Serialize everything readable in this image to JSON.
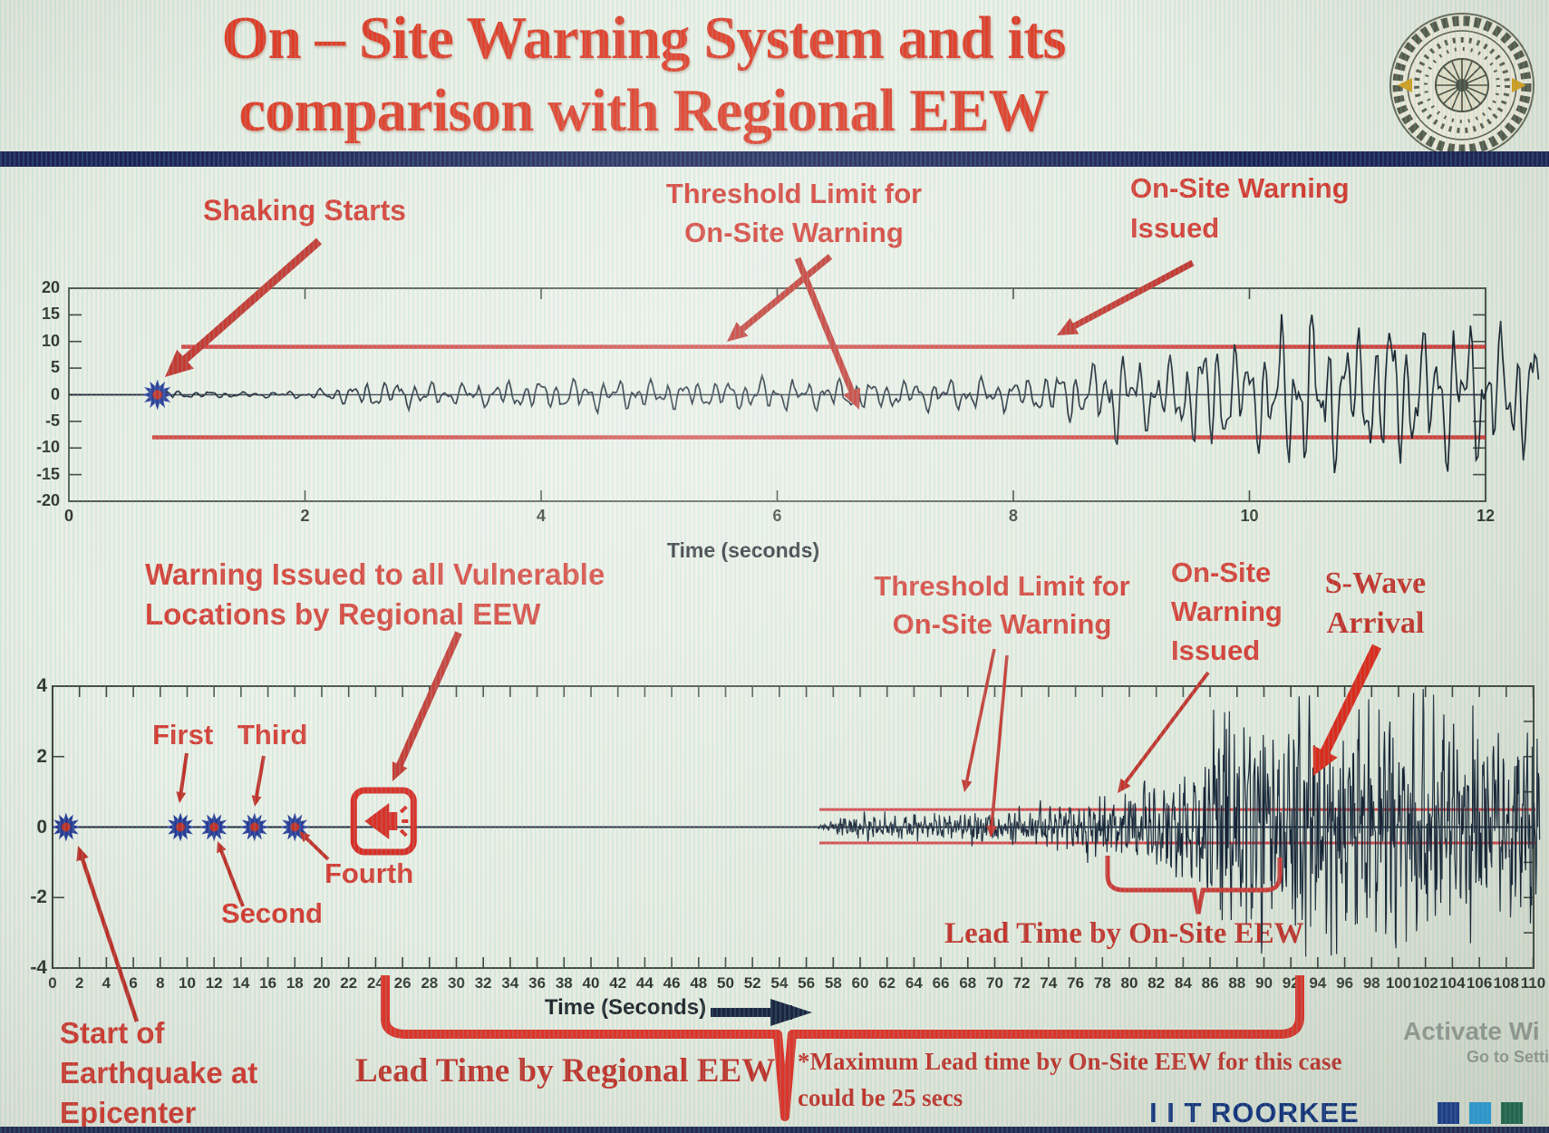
{
  "slide": {
    "title_line1": "On – Site Warning System and its",
    "title_line2": "comparison with Regional EEW"
  },
  "branding": {
    "footer_brand": "I I T ROORKEE",
    "watermark_line1": "Activate Wi",
    "watermark_line2": "Go to Setting"
  },
  "colors": {
    "title_red": "#e03c26",
    "annotation_red": "#d63a30",
    "arrow_red": "#c23028",
    "bright_arrow_red": "#de2b1c",
    "threshold_red": "#cf2b28",
    "waveform_dark": "#1b2430",
    "navy_bar": "#1d2456",
    "brand_blue": "#14337f",
    "marker_blue": "#2a3c96",
    "marker_center_red": "#c03028",
    "alarm_red": "#d8281e",
    "footer_squares": [
      "#1e3f8f",
      "#2da0dc",
      "#226b4f"
    ]
  },
  "top_section": {
    "label_shaking": "Shaking Starts",
    "label_threshold_l1": "Threshold Limit for",
    "label_threshold_l2": "On-Site Warning",
    "label_issued_l1": "On-Site Warning",
    "label_issued_l2": "Issued"
  },
  "bottom_section": {
    "label_warning_l1": "Warning Issued to all Vulnerable",
    "label_warning_l2": "Locations by Regional EEW",
    "label_first": "First",
    "label_second": "Second",
    "label_third": "Third",
    "label_fourth": "Fourth",
    "label_threshold_l1": "Threshold Limit for",
    "label_threshold_l2": "On-Site Warning",
    "label_issued_l1": "On-Site",
    "label_issued_l2": "Warning",
    "label_issued_l3": "Issued",
    "label_swave_l1": "S-Wave",
    "label_swave_l2": "Arrival",
    "label_start_l1": "Start of",
    "label_start_l2": "Earthquake at",
    "label_start_l3": "Epicenter",
    "label_lead_onsite": "Lead Time by On-Site EEW",
    "label_lead_regional": "Lead Time by Regional EEW",
    "note_l1": "*Maximum Lead time by On-Site EEW for this case",
    "note_l2": "could be 25 secs"
  },
  "chart_data": [
    {
      "type": "line",
      "name": "onsite-accelerogram",
      "xlabel": "Time (seconds)",
      "xlim": [
        0,
        12
      ],
      "xticks": [
        0,
        2,
        4,
        6,
        8,
        10,
        12
      ],
      "ylim": [
        -20,
        20
      ],
      "yticks": [
        20,
        15,
        10,
        5,
        0,
        -5,
        -10,
        -15,
        -20
      ],
      "grid": false,
      "threshold_upper": 9,
      "threshold_lower": -8,
      "shaking_start_x": 0.75,
      "onsite_warning_issued_x": 8.8,
      "waveform_envelope": [
        [
          0,
          0
        ],
        [
          0.72,
          0
        ],
        [
          0.78,
          0.9
        ],
        [
          1.1,
          0.7
        ],
        [
          1.5,
          0.55
        ],
        [
          2.0,
          0.7
        ],
        [
          2.3,
          1.6
        ],
        [
          2.6,
          3.2
        ],
        [
          3.0,
          2.4
        ],
        [
          3.4,
          2.0
        ],
        [
          3.8,
          3.0
        ],
        [
          4.2,
          3.5
        ],
        [
          4.6,
          2.6
        ],
        [
          5.0,
          3.1
        ],
        [
          5.4,
          2.6
        ],
        [
          5.8,
          3.3
        ],
        [
          6.2,
          2.7
        ],
        [
          6.6,
          3.2
        ],
        [
          7.0,
          2.7
        ],
        [
          7.4,
          3.1
        ],
        [
          7.8,
          2.9
        ],
        [
          8.1,
          3.4
        ],
        [
          8.4,
          4.4
        ],
        [
          8.7,
          6.5
        ],
        [
          8.85,
          9.8
        ],
        [
          9.1,
          6.5
        ],
        [
          9.4,
          8.5
        ],
        [
          9.7,
          12.5
        ],
        [
          10.0,
          9.5
        ],
        [
          10.3,
          14.5
        ],
        [
          10.6,
          17.0
        ],
        [
          10.9,
          11.5
        ],
        [
          11.2,
          16.5
        ],
        [
          11.5,
          12.5
        ],
        [
          11.8,
          16.0
        ],
        [
          12.1,
          13.0
        ],
        [
          12.45,
          12.0
        ]
      ],
      "wave_freqs": [
        7.5,
        3.2,
        12.5
      ],
      "wave_weights": [
        0.5,
        0.3,
        0.32
      ],
      "wave_jitter": 0.12,
      "seed": 13
    },
    {
      "type": "line",
      "name": "regional-comparison-seismogram",
      "xlabel": "Time (Seconds)",
      "xlim": [
        0,
        110
      ],
      "xticks": [
        0,
        2,
        4,
        6,
        8,
        10,
        12,
        14,
        16,
        18,
        20,
        22,
        24,
        26,
        28,
        30,
        32,
        34,
        36,
        38,
        40,
        42,
        44,
        46,
        48,
        50,
        52,
        54,
        56,
        58,
        60,
        62,
        64,
        66,
        68,
        70,
        72,
        74,
        76,
        78,
        80,
        82,
        84,
        86,
        88,
        90,
        92,
        94,
        96,
        98,
        100,
        102,
        104,
        106,
        108,
        110
      ],
      "ylim": [
        -4,
        4
      ],
      "yticks": [
        4,
        2,
        0,
        -2,
        -4
      ],
      "grid": false,
      "threshold_upper": 0.5,
      "threshold_lower": -0.45,
      "p_wave_markers": [
        {
          "x": 1,
          "label": "Start of Earthquake at Epicenter"
        },
        {
          "x": 9.5,
          "label": "First"
        },
        {
          "x": 12,
          "label": "Second"
        },
        {
          "x": 15,
          "label": "Third"
        },
        {
          "x": 18,
          "label": "Fourth"
        }
      ],
      "regional_warning_x": 24.6,
      "onsite_warning_issued_x": 79,
      "s_wave_arrival_x": 93.5,
      "lead_time_onsite_span": [
        78.5,
        92
      ],
      "lead_time_regional_span": [
        24.7,
        93
      ],
      "max_lead_time_note_secs": 25,
      "waveform_envelope": [
        [
          0,
          0
        ],
        [
          56.5,
          0
        ],
        [
          57.5,
          0.12
        ],
        [
          58.5,
          0.25
        ],
        [
          60,
          0.32
        ],
        [
          62,
          0.28
        ],
        [
          64,
          0.36
        ],
        [
          66,
          0.3
        ],
        [
          68,
          0.38
        ],
        [
          70,
          0.42
        ],
        [
          72,
          0.5
        ],
        [
          74,
          0.55
        ],
        [
          76,
          0.7
        ],
        [
          78,
          0.85
        ],
        [
          80,
          1.05
        ],
        [
          82,
          1.25
        ],
        [
          84,
          1.5
        ],
        [
          85.5,
          2.0
        ],
        [
          86.5,
          3.0
        ],
        [
          87.5,
          3.4
        ],
        [
          88.5,
          2.8
        ],
        [
          89.5,
          3.2
        ],
        [
          90.5,
          2.7
        ],
        [
          91.5,
          3.0
        ],
        [
          92.5,
          3.3
        ],
        [
          93.5,
          3.7
        ],
        [
          94.5,
          3.3
        ],
        [
          95.5,
          3.6
        ],
        [
          96.5,
          3.1
        ],
        [
          98,
          3.3
        ],
        [
          100,
          2.8
        ],
        [
          102,
          3.0
        ],
        [
          104,
          2.6
        ],
        [
          106,
          2.7
        ],
        [
          108,
          2.3
        ],
        [
          110.5,
          2.4
        ]
      ],
      "wave_freqs": [
        2.7,
        1.3,
        5.2,
        8.4
      ],
      "wave_weights": [
        0.45,
        0.25,
        0.3,
        0.25
      ],
      "wave_jitter": 0.5,
      "seed": 29
    }
  ]
}
